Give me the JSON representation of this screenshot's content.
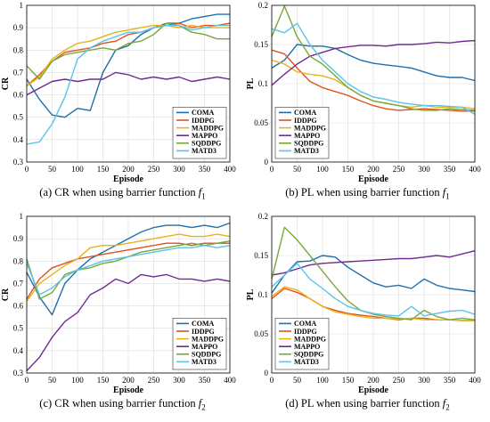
{
  "colors": {
    "COMA": "#1f6fad",
    "IDDPG": "#e0521f",
    "MADDPG": "#e8b21a",
    "MAPPO": "#6f2b8e",
    "SQDDPG": "#78a83a",
    "MATD3": "#5bc3e8"
  },
  "chart_data": [
    {
      "type": "line",
      "caption_prefix": "(a) CR when using barrier function ",
      "caption_func": "f",
      "caption_sub": "1",
      "xlabel": "Episode",
      "ylabel": "CR",
      "xlim": [
        0,
        400
      ],
      "ylim": [
        0.3,
        1.0
      ],
      "xticks": [
        "0",
        "50",
        "100",
        "150",
        "200",
        "250",
        "300",
        "350",
        "400"
      ],
      "yticks": [
        "0.3",
        "0.4",
        "0.5",
        "0.6",
        "0.7",
        "0.8",
        "0.9",
        "1"
      ],
      "legend_position": "bottom-right",
      "grid": true,
      "x": [
        0,
        25,
        50,
        75,
        100,
        125,
        150,
        175,
        200,
        225,
        250,
        275,
        300,
        325,
        350,
        375,
        400
      ],
      "series": [
        {
          "name": "COMA",
          "values": [
            0.67,
            0.58,
            0.51,
            0.5,
            0.54,
            0.53,
            0.7,
            0.8,
            0.82,
            0.87,
            0.9,
            0.92,
            0.92,
            0.94,
            0.95,
            0.96,
            0.96
          ]
        },
        {
          "name": "IDDPG",
          "values": [
            0.64,
            0.69,
            0.75,
            0.79,
            0.8,
            0.81,
            0.83,
            0.84,
            0.87,
            0.88,
            0.9,
            0.91,
            0.92,
            0.9,
            0.91,
            0.91,
            0.92
          ]
        },
        {
          "name": "MADDPG",
          "values": [
            0.64,
            0.68,
            0.76,
            0.8,
            0.83,
            0.84,
            0.86,
            0.88,
            0.89,
            0.9,
            0.91,
            0.91,
            0.9,
            0.91,
            0.9,
            0.9,
            0.9
          ]
        },
        {
          "name": "MAPPO",
          "values": [
            0.6,
            0.63,
            0.66,
            0.67,
            0.66,
            0.67,
            0.67,
            0.7,
            0.69,
            0.67,
            0.68,
            0.67,
            0.68,
            0.66,
            0.67,
            0.68,
            0.67
          ]
        },
        {
          "name": "SQDDPG",
          "values": [
            0.73,
            0.67,
            0.75,
            0.78,
            0.79,
            0.8,
            0.81,
            0.8,
            0.83,
            0.84,
            0.87,
            0.92,
            0.91,
            0.88,
            0.87,
            0.85,
            0.85
          ]
        },
        {
          "name": "MATD3",
          "values": [
            0.38,
            0.39,
            0.47,
            0.59,
            0.76,
            0.81,
            0.84,
            0.86,
            0.88,
            0.88,
            0.9,
            0.91,
            0.91,
            0.89,
            0.9,
            0.91,
            0.91
          ]
        }
      ]
    },
    {
      "type": "line",
      "caption_prefix": "(b) PL when using barrier function ",
      "caption_func": "f",
      "caption_sub": "1",
      "xlabel": "Episode",
      "ylabel": "PL",
      "xlim": [
        0,
        400
      ],
      "ylim": [
        0,
        0.2
      ],
      "xticks": [
        "0",
        "50",
        "100",
        "150",
        "200",
        "250",
        "300",
        "350",
        "400"
      ],
      "yticks": [
        "0",
        "0.05",
        "0.1",
        "0.15",
        "0.2"
      ],
      "legend_position": "bottom-left",
      "grid": true,
      "x": [
        0,
        25,
        50,
        75,
        100,
        125,
        150,
        175,
        200,
        225,
        250,
        275,
        300,
        325,
        350,
        375,
        400
      ],
      "series": [
        {
          "name": "COMA",
          "values": [
            0.12,
            0.13,
            0.15,
            0.148,
            0.148,
            0.145,
            0.137,
            0.13,
            0.126,
            0.124,
            0.122,
            0.12,
            0.115,
            0.11,
            0.108,
            0.108,
            0.104
          ]
        },
        {
          "name": "IDDPG",
          "values": [
            0.143,
            0.138,
            0.12,
            0.103,
            0.095,
            0.09,
            0.085,
            0.078,
            0.072,
            0.068,
            0.066,
            0.067,
            0.068,
            0.067,
            0.066,
            0.065,
            0.065
          ]
        },
        {
          "name": "MADDPG",
          "values": [
            0.13,
            0.125,
            0.115,
            0.112,
            0.11,
            0.105,
            0.095,
            0.085,
            0.078,
            0.075,
            0.072,
            0.07,
            0.072,
            0.07,
            0.07,
            0.07,
            0.068
          ]
        },
        {
          "name": "MAPPO",
          "values": [
            0.098,
            0.112,
            0.125,
            0.135,
            0.14,
            0.145,
            0.147,
            0.149,
            0.149,
            0.148,
            0.15,
            0.15,
            0.151,
            0.153,
            0.152,
            0.154,
            0.155
          ]
        },
        {
          "name": "SQDDPG",
          "values": [
            0.16,
            0.199,
            0.16,
            0.135,
            0.125,
            0.11,
            0.095,
            0.085,
            0.078,
            0.075,
            0.072,
            0.068,
            0.066,
            0.066,
            0.068,
            0.067,
            0.066
          ]
        },
        {
          "name": "MATD3",
          "values": [
            0.17,
            0.165,
            0.177,
            0.15,
            0.13,
            0.115,
            0.1,
            0.09,
            0.083,
            0.08,
            0.076,
            0.074,
            0.072,
            0.072,
            0.071,
            0.07,
            0.061
          ]
        }
      ]
    },
    {
      "type": "line",
      "caption_prefix": "(c) CR when using barrier function ",
      "caption_func": "f",
      "caption_sub": "2",
      "xlabel": "Episode",
      "ylabel": "CR",
      "xlim": [
        0,
        400
      ],
      "ylim": [
        0.3,
        1.0
      ],
      "xticks": [
        "0",
        "50",
        "100",
        "150",
        "200",
        "250",
        "300",
        "350",
        "400"
      ],
      "yticks": [
        "0.3",
        "0.4",
        "0.5",
        "0.6",
        "0.7",
        "0.8",
        "0.9",
        "1"
      ],
      "legend_position": "bottom-right",
      "grid": true,
      "x": [
        0,
        25,
        50,
        75,
        100,
        125,
        150,
        175,
        200,
        225,
        250,
        275,
        300,
        325,
        350,
        375,
        400
      ],
      "series": [
        {
          "name": "COMA",
          "values": [
            0.75,
            0.64,
            0.56,
            0.7,
            0.76,
            0.81,
            0.84,
            0.87,
            0.9,
            0.93,
            0.95,
            0.96,
            0.96,
            0.95,
            0.96,
            0.95,
            0.97
          ]
        },
        {
          "name": "IDDPG",
          "values": [
            0.63,
            0.72,
            0.77,
            0.79,
            0.81,
            0.82,
            0.83,
            0.84,
            0.85,
            0.86,
            0.87,
            0.88,
            0.88,
            0.87,
            0.88,
            0.88,
            0.88
          ]
        },
        {
          "name": "MADDPG",
          "values": [
            0.62,
            0.7,
            0.74,
            0.78,
            0.81,
            0.86,
            0.87,
            0.87,
            0.88,
            0.89,
            0.9,
            0.91,
            0.92,
            0.91,
            0.91,
            0.92,
            0.91
          ]
        },
        {
          "name": "MAPPO",
          "values": [
            0.31,
            0.37,
            0.46,
            0.53,
            0.57,
            0.65,
            0.68,
            0.72,
            0.7,
            0.74,
            0.73,
            0.74,
            0.72,
            0.72,
            0.71,
            0.72,
            0.71
          ]
        },
        {
          "name": "SQDDPG",
          "values": [
            0.81,
            0.63,
            0.66,
            0.74,
            0.76,
            0.77,
            0.79,
            0.8,
            0.82,
            0.84,
            0.85,
            0.86,
            0.87,
            0.88,
            0.87,
            0.88,
            0.89
          ]
        },
        {
          "name": "MATD3",
          "values": [
            0.79,
            0.65,
            0.68,
            0.73,
            0.76,
            0.78,
            0.8,
            0.81,
            0.82,
            0.83,
            0.84,
            0.85,
            0.86,
            0.86,
            0.87,
            0.86,
            0.87
          ]
        }
      ]
    },
    {
      "type": "line",
      "caption_prefix": "(d) PL when using barrier function ",
      "caption_func": "f",
      "caption_sub": "2",
      "xlabel": "Episode",
      "ylabel": "PL",
      "xlim": [
        0,
        400
      ],
      "ylim": [
        0,
        0.2
      ],
      "xticks": [
        "0",
        "50",
        "100",
        "150",
        "200",
        "250",
        "300",
        "350",
        "400"
      ],
      "yticks": [
        "0",
        "0.05",
        "0.1",
        "0.15",
        "0.2"
      ],
      "legend_position": "bottom-left",
      "grid": true,
      "x": [
        0,
        25,
        50,
        75,
        100,
        125,
        150,
        175,
        200,
        225,
        250,
        275,
        300,
        325,
        350,
        375,
        400
      ],
      "series": [
        {
          "name": "COMA",
          "values": [
            0.102,
            0.125,
            0.142,
            0.143,
            0.15,
            0.148,
            0.135,
            0.125,
            0.115,
            0.11,
            0.112,
            0.108,
            0.12,
            0.112,
            0.108,
            0.106,
            0.104
          ]
        },
        {
          "name": "IDDPG",
          "values": [
            0.095,
            0.108,
            0.103,
            0.095,
            0.085,
            0.08,
            0.076,
            0.074,
            0.072,
            0.07,
            0.068,
            0.07,
            0.07,
            0.068,
            0.068,
            0.067,
            0.067
          ]
        },
        {
          "name": "MADDPG",
          "values": [
            0.098,
            0.11,
            0.106,
            0.095,
            0.085,
            0.078,
            0.075,
            0.072,
            0.07,
            0.07,
            0.069,
            0.07,
            0.068,
            0.068,
            0.068,
            0.067,
            0.067
          ]
        },
        {
          "name": "MAPPO",
          "values": [
            0.125,
            0.128,
            0.133,
            0.138,
            0.14,
            0.141,
            0.142,
            0.143,
            0.144,
            0.145,
            0.146,
            0.146,
            0.148,
            0.15,
            0.148,
            0.152,
            0.156
          ]
        },
        {
          "name": "SQDDPG",
          "values": [
            0.12,
            0.186,
            0.17,
            0.15,
            0.13,
            0.11,
            0.092,
            0.08,
            0.075,
            0.072,
            0.07,
            0.068,
            0.08,
            0.072,
            0.068,
            0.07,
            0.068
          ]
        },
        {
          "name": "MATD3",
          "values": [
            0.11,
            0.125,
            0.14,
            0.12,
            0.108,
            0.095,
            0.085,
            0.08,
            0.076,
            0.074,
            0.073,
            0.085,
            0.073,
            0.076,
            0.079,
            0.08,
            0.075
          ]
        }
      ]
    }
  ]
}
